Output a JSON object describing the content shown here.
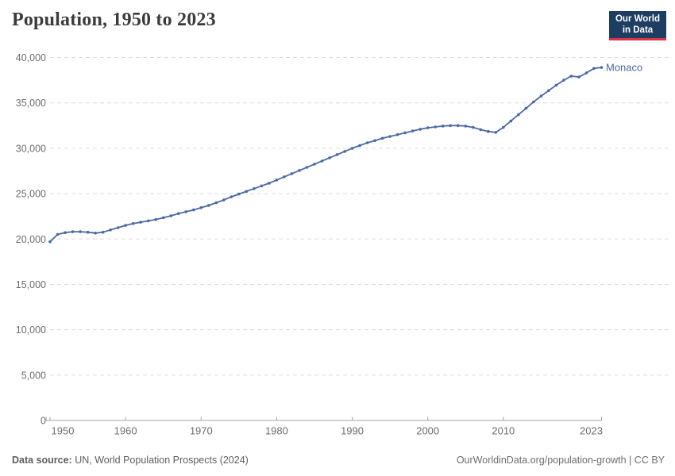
{
  "header": {
    "title": "Population, 1950 to 2023"
  },
  "logo": {
    "line1": "Our World",
    "line2": "in Data"
  },
  "footer": {
    "source_label": "Data source:",
    "source_text": " UN, World Population Prospects (2024)",
    "right_text": "OurWorldinData.org/population-growth | CC BY"
  },
  "colors": {
    "line": "#4d69a5",
    "grid": "#dcdcdc",
    "axis": "#a3a3a3",
    "tick_label": "#6e6e6e",
    "logo_bg": "#1d3d63",
    "logo_stripe": "#dc354a"
  },
  "chart_data": {
    "type": "line",
    "title": "Population, 1950 to 2023",
    "xlabel": "",
    "ylabel": "",
    "xlim": [
      1950,
      2023
    ],
    "ylim": [
      0,
      40000
    ],
    "x_ticks": [
      1950,
      1960,
      1970,
      1980,
      1990,
      2000,
      2010,
      2023
    ],
    "y_ticks": [
      0,
      5000,
      10000,
      15000,
      20000,
      25000,
      30000,
      35000,
      40000
    ],
    "grid": "dashed-horizontal",
    "legend_position": "end-of-line",
    "series": [
      {
        "name": "Monaco",
        "color": "#4d69a5",
        "x": [
          1950,
          1951,
          1952,
          1953,
          1954,
          1955,
          1956,
          1957,
          1958,
          1959,
          1960,
          1961,
          1962,
          1963,
          1964,
          1965,
          1966,
          1967,
          1968,
          1969,
          1970,
          1971,
          1972,
          1973,
          1974,
          1975,
          1976,
          1977,
          1978,
          1979,
          1980,
          1981,
          1982,
          1983,
          1984,
          1985,
          1986,
          1987,
          1988,
          1989,
          1990,
          1991,
          1992,
          1993,
          1994,
          1995,
          1996,
          1997,
          1998,
          1999,
          2000,
          2001,
          2002,
          2003,
          2004,
          2005,
          2006,
          2007,
          2008,
          2009,
          2010,
          2011,
          2012,
          2013,
          2014,
          2015,
          2016,
          2017,
          2018,
          2019,
          2020,
          2021,
          2022,
          2023
        ],
        "values": [
          19700,
          20500,
          20700,
          20800,
          20800,
          20750,
          20650,
          20750,
          21000,
          21250,
          21500,
          21700,
          21850,
          22000,
          22150,
          22350,
          22550,
          22800,
          23000,
          23200,
          23450,
          23700,
          24000,
          24300,
          24650,
          24950,
          25250,
          25550,
          25850,
          26150,
          26500,
          26850,
          27200,
          27550,
          27900,
          28250,
          28600,
          28950,
          29300,
          29650,
          30000,
          30300,
          30600,
          30850,
          31100,
          31300,
          31500,
          31700,
          31900,
          32100,
          32250,
          32350,
          32450,
          32500,
          32500,
          32450,
          32300,
          32050,
          31850,
          31750,
          32300,
          33000,
          33700,
          34400,
          35100,
          35750,
          36350,
          36950,
          37500,
          37950,
          37850,
          38300,
          38800,
          38900
        ]
      }
    ]
  }
}
